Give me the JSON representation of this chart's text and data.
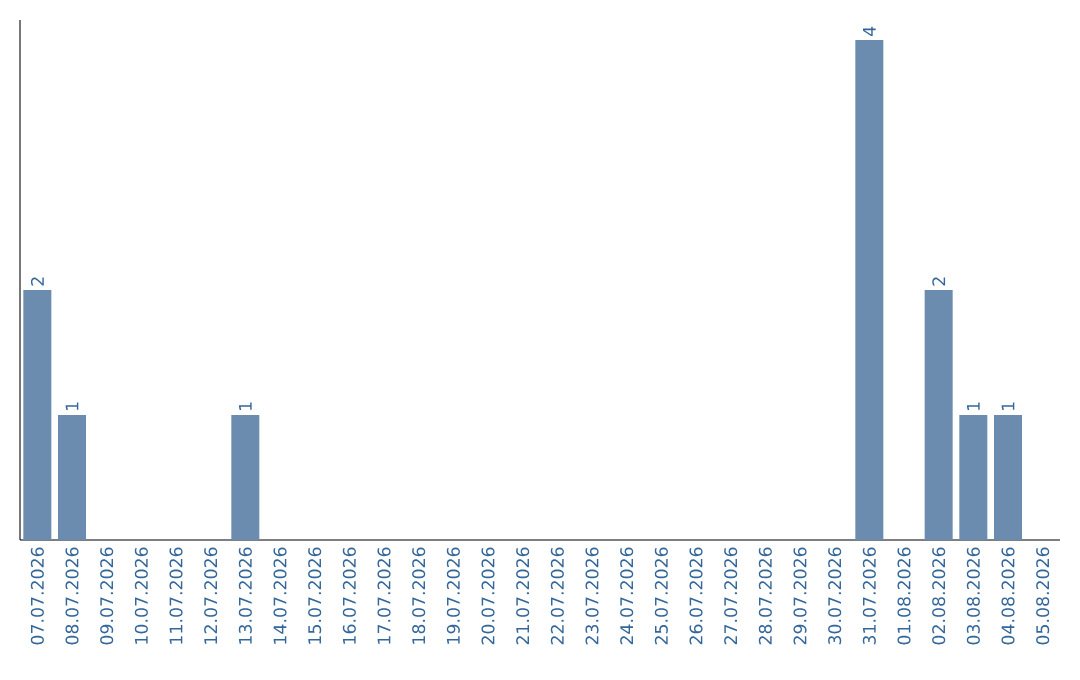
{
  "chart_data": {
    "type": "bar",
    "categories": [
      "07.07.2026",
      "08.07.2026",
      "09.07.2026",
      "10.07.2026",
      "11.07.2026",
      "12.07.2026",
      "13.07.2026",
      "14.07.2026",
      "15.07.2026",
      "16.07.2026",
      "17.07.2026",
      "18.07.2026",
      "19.07.2026",
      "20.07.2026",
      "21.07.2026",
      "22.07.2026",
      "23.07.2026",
      "24.07.2026",
      "25.07.2026",
      "26.07.2026",
      "27.07.2026",
      "28.07.2026",
      "29.07.2026",
      "30.07.2026",
      "31.07.2026",
      "01.08.2026",
      "02.08.2026",
      "03.08.2026",
      "04.08.2026",
      "05.08.2026"
    ],
    "values": [
      2,
      1,
      0,
      0,
      0,
      0,
      1,
      0,
      0,
      0,
      0,
      0,
      0,
      0,
      0,
      0,
      0,
      0,
      0,
      0,
      0,
      0,
      0,
      0,
      4,
      0,
      2,
      1,
      1,
      0
    ],
    "value_labels": [
      "2",
      "1",
      null,
      null,
      null,
      null,
      "1",
      null,
      null,
      null,
      null,
      null,
      null,
      null,
      null,
      null,
      null,
      null,
      null,
      null,
      null,
      null,
      null,
      null,
      "4",
      null,
      "2",
      "1",
      "1",
      null
    ],
    "color": "#6c8caf",
    "grid": false
  }
}
